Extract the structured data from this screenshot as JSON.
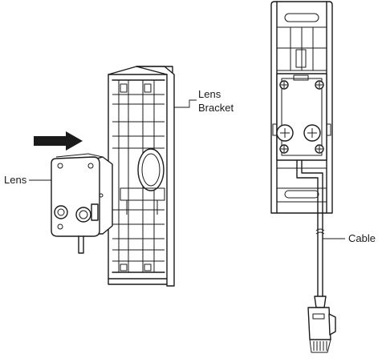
{
  "labels": {
    "lens": "Lens",
    "lens_bracket_line1": "Lens",
    "lens_bracket_line2": "Bracket",
    "cable": "Cable"
  },
  "icons": {
    "direction_arrow": "arrow-right-icon"
  },
  "colors": {
    "line": "#1a1a1a",
    "background": "#ffffff"
  }
}
